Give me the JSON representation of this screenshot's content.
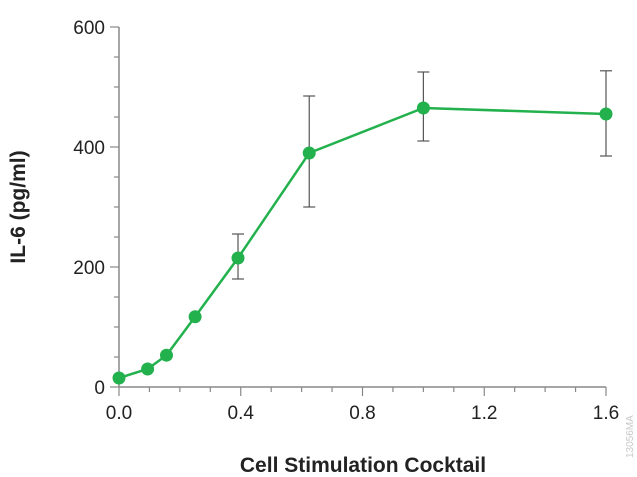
{
  "chart_data": {
    "type": "line",
    "xlabel": "Cell Stimulation Cocktail",
    "ylabel": "IL-6 (pg/ml)",
    "xlim": [
      0,
      1.6
    ],
    "ylim": [
      0,
      600
    ],
    "x_ticks": [
      0.0,
      0.4,
      0.8,
      1.2,
      1.6
    ],
    "x_tick_labels": [
      "0.0",
      "0.4",
      "0.8",
      "1.2",
      "1.6"
    ],
    "y_ticks": [
      0,
      200,
      400,
      600
    ],
    "y_tick_labels": [
      "0",
      "200",
      "400",
      "600"
    ],
    "y_minor_step": 50,
    "x_minor_step": 0.1,
    "grid": false,
    "color": "#22b14c",
    "series": [
      {
        "x": [
          0.0,
          0.094,
          0.156,
          0.25,
          0.391,
          0.625,
          1.0,
          1.6
        ],
        "y": [
          15,
          30,
          53,
          117,
          215,
          390,
          465,
          455
        ],
        "error": [
          null,
          null,
          null,
          null,
          [
            180,
            255
          ],
          [
            300,
            485
          ],
          [
            410,
            525
          ],
          [
            385,
            527
          ]
        ]
      }
    ],
    "watermark": "13056MA"
  }
}
